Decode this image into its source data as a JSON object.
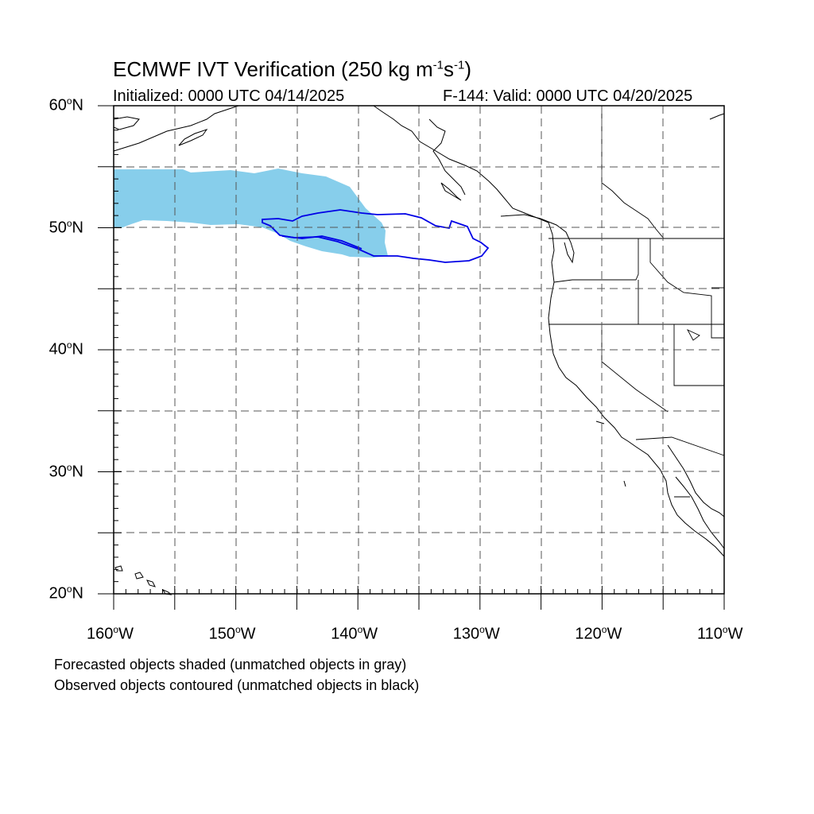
{
  "title": {
    "main": "ECMWF IVT Verification (250 kg m",
    "sup1": "-1",
    "mid": "s",
    "sup2": "-1",
    "end": ")"
  },
  "subtitle_left": "Initialized: 0000 UTC 04/14/2025",
  "subtitle_right": "F-144: Valid: 0000 UTC 04/20/2025",
  "lat_labels": [
    "60",
    "50",
    "40",
    "30",
    "20"
  ],
  "lat_suffix": "N",
  "lon_labels": [
    "160",
    "150",
    "140",
    "130",
    "120",
    "110"
  ],
  "lon_suffix": "W",
  "footnotes": {
    "forecast": "Forecasted objects shaded (unmatched objects in gray)",
    "observed": "Observed objects contoured (unmatched objects in black)"
  },
  "colors": {
    "forecast_fill": "#87ceeb",
    "observed_contour": "#0000e6",
    "coastline": "#000000",
    "grid": "#555555"
  },
  "map": {
    "lon_range": [
      -160,
      -110
    ],
    "lat_range": [
      20,
      60
    ],
    "grid_spacing_deg": 5,
    "gridlines": "dashed"
  }
}
